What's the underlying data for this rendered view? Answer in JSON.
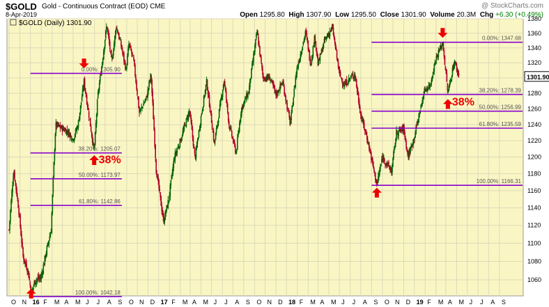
{
  "header": {
    "symbol": "$GOLD",
    "description": "Gold - Continuous Contract (EOD)",
    "exchange": "CME",
    "brand": "@ StockCharts.com",
    "date": "8-Apr-2019",
    "open_label": "Open",
    "open": "1295.80",
    "high_label": "High",
    "high": "1307.90",
    "low_label": "Low",
    "low": "1295.50",
    "close_label": "Close",
    "close": "1301.90",
    "volume_label": "Volume",
    "volume": "20.3M",
    "change_label": "Chg",
    "change": "+6.30 (+0.49%)"
  },
  "legend": {
    "text": "$GOLD (Daily) 1301.90"
  },
  "colors": {
    "background": "#faf6c4",
    "up": "#006400",
    "down": "#b00028",
    "fib": "#8800cc",
    "arrow": "#ee0000"
  },
  "chart_data": {
    "type": "candlestick",
    "title": "$GOLD (Daily) 1301.90",
    "ylim": [
      1043,
      1380
    ],
    "y_ticks": [
      1060,
      1080,
      1100,
      1120,
      1140,
      1160,
      1180,
      1200,
      1220,
      1240,
      1260,
      1280,
      1300,
      1320,
      1340,
      1360,
      1380
    ],
    "y_scale": "log",
    "grid": true,
    "last_price": "1301.90",
    "x_ticks": [
      "O",
      "N",
      "16",
      "F",
      "M",
      "A",
      "M",
      "J",
      "J",
      "A",
      "S",
      "O",
      "N",
      "D",
      "17",
      "F",
      "M",
      "A",
      "M",
      "J",
      "J",
      "A",
      "S",
      "O",
      "N",
      "D",
      "18",
      "F",
      "M",
      "A",
      "M",
      "J",
      "J",
      "A",
      "S",
      "O",
      "N",
      "D",
      "19",
      "F",
      "M",
      "A",
      "M",
      "J",
      "J",
      "A",
      "S"
    ],
    "price_path": [
      [
        "2015-10-01",
        1115
      ],
      [
        "2015-10-14",
        1185
      ],
      [
        "2015-10-28",
        1140
      ],
      [
        "2015-11-10",
        1085
      ],
      [
        "2015-11-24",
        1070
      ],
      [
        "2015-12-03",
        1046
      ],
      [
        "2015-12-15",
        1060
      ],
      [
        "2015-12-31",
        1062
      ],
      [
        "2016-01-15",
        1090
      ],
      [
        "2016-01-29",
        1115
      ],
      [
        "2016-02-11",
        1240
      ],
      [
        "2016-03-01",
        1235
      ],
      [
        "2016-03-15",
        1232
      ],
      [
        "2016-04-01",
        1222
      ],
      [
        "2016-04-15",
        1240
      ],
      [
        "2016-05-02",
        1295
      ],
      [
        "2016-05-10",
        1270
      ],
      [
        "2016-05-31",
        1206
      ],
      [
        "2016-06-10",
        1275
      ],
      [
        "2016-06-24",
        1325
      ],
      [
        "2016-07-06",
        1372
      ],
      [
        "2016-07-20",
        1320
      ],
      [
        "2016-08-02",
        1370
      ],
      [
        "2016-08-15",
        1345
      ],
      [
        "2016-08-30",
        1310
      ],
      [
        "2016-09-07",
        1345
      ],
      [
        "2016-09-20",
        1325
      ],
      [
        "2016-10-07",
        1255
      ],
      [
        "2016-10-28",
        1275
      ],
      [
        "2016-11-09",
        1305
      ],
      [
        "2016-11-24",
        1185
      ],
      [
        "2016-12-15",
        1124
      ],
      [
        "2016-12-30",
        1150
      ],
      [
        "2017-01-15",
        1200
      ],
      [
        "2017-02-01",
        1220
      ],
      [
        "2017-02-27",
        1258
      ],
      [
        "2017-03-15",
        1198
      ],
      [
        "2017-04-01",
        1250
      ],
      [
        "2017-04-17",
        1295
      ],
      [
        "2017-05-09",
        1216
      ],
      [
        "2017-06-06",
        1297
      ],
      [
        "2017-06-20",
        1240
      ],
      [
        "2017-07-10",
        1205
      ],
      [
        "2017-07-25",
        1260
      ],
      [
        "2017-08-15",
        1282
      ],
      [
        "2017-09-08",
        1362
      ],
      [
        "2017-09-25",
        1300
      ],
      [
        "2017-10-15",
        1300
      ],
      [
        "2017-11-01",
        1278
      ],
      [
        "2017-11-20",
        1295
      ],
      [
        "2017-12-12",
        1240
      ],
      [
        "2017-12-29",
        1308
      ],
      [
        "2018-01-25",
        1362
      ],
      [
        "2018-02-08",
        1318
      ],
      [
        "2018-02-20",
        1356
      ],
      [
        "2018-03-01",
        1318
      ],
      [
        "2018-03-20",
        1350
      ],
      [
        "2018-04-11",
        1368
      ],
      [
        "2018-05-01",
        1305
      ],
      [
        "2018-05-15",
        1290
      ],
      [
        "2018-06-01",
        1300
      ],
      [
        "2018-06-14",
        1305
      ],
      [
        "2018-07-01",
        1252
      ],
      [
        "2018-07-20",
        1222
      ],
      [
        "2018-08-16",
        1167
      ],
      [
        "2018-09-01",
        1200
      ],
      [
        "2018-09-27",
        1183
      ],
      [
        "2018-10-11",
        1230
      ],
      [
        "2018-11-01",
        1235
      ],
      [
        "2018-11-13",
        1200
      ],
      [
        "2018-12-01",
        1225
      ],
      [
        "2018-12-31",
        1285
      ],
      [
        "2019-01-15",
        1290
      ],
      [
        "2019-01-31",
        1325
      ],
      [
        "2019-02-20",
        1347
      ],
      [
        "2019-03-07",
        1280
      ],
      [
        "2019-03-25",
        1322
      ],
      [
        "2019-04-08",
        1301.9
      ]
    ],
    "fib_levels": [
      {
        "group": "2016",
        "levels": [
          {
            "label": "0.00%: 1305.90",
            "value": 1305.9
          },
          {
            "label": "38.20%: 1205.07",
            "value": 1205.07
          },
          {
            "label": "50.00%: 1173.97",
            "value": 1173.97
          },
          {
            "label": "61.80%: 1142.86",
            "value": 1142.86
          },
          {
            "label": "100.00%: 1042.18",
            "value": 1042.18
          }
        ]
      },
      {
        "group": "2018-19",
        "levels": [
          {
            "label": "0.00%: 1347.68",
            "value": 1347.68
          },
          {
            "label": "38.20%: 1278.39",
            "value": 1278.39
          },
          {
            "label": "50.00%: 1256.99",
            "value": 1256.99
          },
          {
            "label": "61.80%: 1235.59",
            "value": 1235.59
          },
          {
            "label": "100.00%: 1166.31",
            "value": 1166.31
          }
        ]
      }
    ],
    "annotations": [
      {
        "text": "38%",
        "near": "2016-06"
      },
      {
        "text": "38%",
        "near": "2019-03"
      }
    ]
  }
}
